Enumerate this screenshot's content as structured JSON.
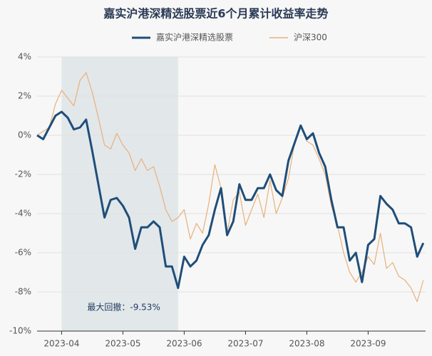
{
  "chart_data": {
    "type": "line",
    "title": "嘉实沪港深精选股票近6个月累计收益率走势",
    "categories": [
      null,
      null,
      null,
      null,
      "2023-04",
      null,
      null,
      null,
      null,
      null,
      null,
      null,
      null,
      null,
      "2023-05",
      null,
      null,
      null,
      null,
      null,
      null,
      null,
      null,
      null,
      "2023-06",
      null,
      null,
      null,
      null,
      null,
      null,
      null,
      null,
      null,
      "2023-07",
      null,
      null,
      null,
      null,
      null,
      null,
      null,
      null,
      null,
      "2023-08",
      null,
      null,
      null,
      null,
      null,
      null,
      null,
      null,
      null,
      "2023-09",
      null,
      null,
      null,
      null,
      null,
      null,
      null,
      null,
      null
    ],
    "series": [
      {
        "name": "嘉实沪港深精选股票",
        "color": "#1f4e79",
        "values": [
          0,
          -0.2,
          0.4,
          1.0,
          1.2,
          0.9,
          0.3,
          0.4,
          0.8,
          -0.8,
          -2.5,
          -4.2,
          -3.3,
          -3.2,
          -3.6,
          -4.2,
          -5.8,
          -4.7,
          -4.7,
          -4.4,
          -4.7,
          -6.7,
          -6.7,
          -7.8,
          -6.2,
          -6.7,
          -6.4,
          -5.6,
          -5.1,
          -3.8,
          -2.7,
          -5.1,
          -4.4,
          -2.5,
          -3.3,
          -3.3,
          -2.7,
          -2.7,
          -2.0,
          -2.8,
          -3.1,
          -1.3,
          -0.4,
          0.5,
          -0.2,
          0.1,
          -0.9,
          -1.6,
          -3.3,
          -4.7,
          -4.7,
          -6.4,
          -6.0,
          -7.5,
          -5.6,
          -5.3,
          -3.1,
          -3.5,
          -3.8,
          -4.5,
          -4.5,
          -4.7,
          -6.2,
          -5.5
        ]
      },
      {
        "name": "沪深300",
        "color": "#e8b07a",
        "values": [
          0,
          0.2,
          0.4,
          1.6,
          2.3,
          1.9,
          1.5,
          2.8,
          3.2,
          2.2,
          0.9,
          -0.5,
          -0.7,
          0.1,
          -0.5,
          -0.9,
          -1.8,
          -1.2,
          -1.8,
          -1.6,
          -2.6,
          -3.8,
          -4.4,
          -4.2,
          -3.8,
          -5.3,
          -4.5,
          -5.0,
          -3.5,
          -1.5,
          -2.7,
          -5.0,
          -3.3,
          -2.9,
          -4.6,
          -3.8,
          -3.0,
          -4.2,
          -2.3,
          -4.0,
          -3.2,
          -2.2,
          -0.4,
          0.5,
          -0.3,
          -0.5,
          -1.2,
          -2.0,
          -3.6,
          -4.6,
          -6.0,
          -7.0,
          -7.5,
          -7.0,
          -6.2,
          -6.6,
          -5.0,
          -6.8,
          -6.5,
          -7.2,
          -7.4,
          -7.8,
          -8.5,
          -7.4
        ]
      }
    ],
    "ylim": [
      -10,
      4
    ],
    "yticks": [
      {
        "value": -10,
        "label": "-10%"
      },
      {
        "value": -8,
        "label": "-8%"
      },
      {
        "value": -6,
        "label": "-6%"
      },
      {
        "value": -4,
        "label": "-4%"
      },
      {
        "value": -2,
        "label": "-2%"
      },
      {
        "value": 0,
        "label": "0%"
      },
      {
        "value": 2,
        "label": "2%"
      },
      {
        "value": 4,
        "label": "4%"
      }
    ],
    "grid": true,
    "annotation": "最大回撤：-9.53%"
  }
}
